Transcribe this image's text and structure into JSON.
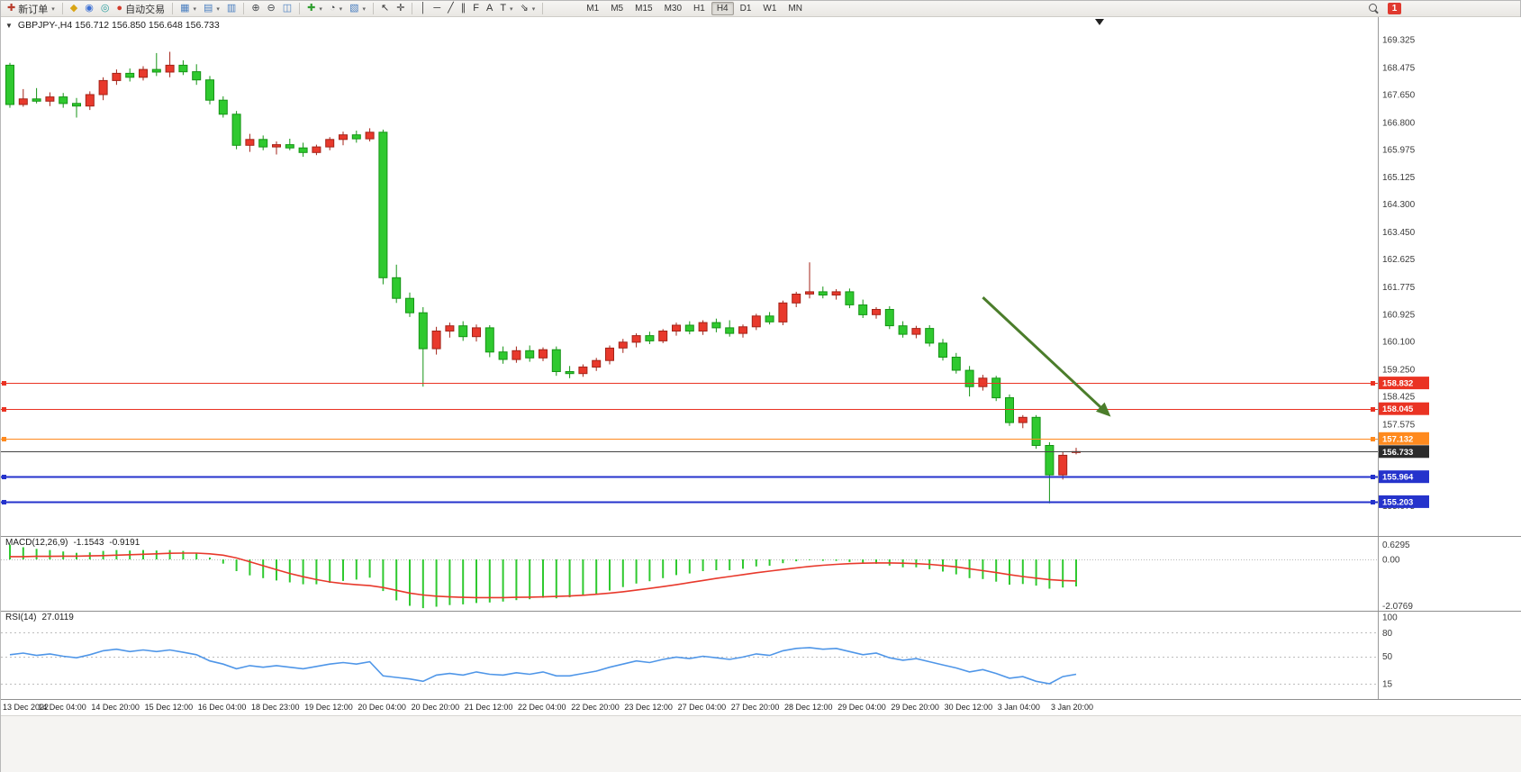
{
  "icons": {
    "collapse": "▼",
    "caret": "▾"
  },
  "toolbar": {
    "groups": [
      [
        {
          "name": "new-order-button",
          "glyph": "✚",
          "color": "#b83b2a",
          "label": "新订单",
          "caret": true
        }
      ],
      [
        {
          "name": "market-button",
          "glyph": "◆",
          "color": "#d9a514"
        },
        {
          "name": "community-button",
          "glyph": "◉",
          "color": "#3b6fd4"
        },
        {
          "name": "alerts-button",
          "glyph": "◎",
          "color": "#2a9e9e"
        },
        {
          "name": "autotrading-button",
          "glyph": "●",
          "color": "#d23b2b",
          "label": "自动交易"
        }
      ],
      [
        {
          "name": "new-chart-button",
          "glyph": "▦",
          "color": "#4a7fc0",
          "caret": true
        },
        {
          "name": "profiles-button",
          "glyph": "▤",
          "color": "#4a7fc0",
          "caret": true
        },
        {
          "name": "data-window-button",
          "glyph": "▥",
          "color": "#4a7fc0"
        }
      ],
      [
        {
          "name": "zoom-in-button",
          "glyph": "⊕",
          "color": "#44484c"
        },
        {
          "name": "zoom-out-button",
          "glyph": "⊖",
          "color": "#44484c"
        },
        {
          "name": "tile-windows-button",
          "glyph": "◫",
          "color": "#4a7fc0"
        }
      ],
      [
        {
          "name": "indicators-button",
          "glyph": "✚",
          "color": "#2f9e2f",
          "caret": true
        },
        {
          "name": "periods-button",
          "glyph": "◔",
          "color": "#44484c",
          "caret": true
        },
        {
          "name": "templates-button",
          "glyph": "▧",
          "color": "#4a7fc0",
          "caret": true
        }
      ],
      [
        {
          "name": "cursor-button",
          "glyph": "↖",
          "color": "#333333"
        },
        {
          "name": "crosshair-button",
          "glyph": "✛",
          "color": "#333333"
        }
      ],
      [
        {
          "name": "vertical-line-button",
          "glyph": "│",
          "color": "#333333"
        },
        {
          "name": "horizontal-line-button",
          "glyph": "─",
          "color": "#333333"
        },
        {
          "name": "trendline-button",
          "glyph": "╱",
          "color": "#333333"
        },
        {
          "name": "equidistant-channel-button",
          "glyph": "∥",
          "color": "#333333"
        },
        {
          "name": "fibonacci-button",
          "glyph": "F",
          "color": "#333333"
        },
        {
          "name": "text-button",
          "glyph": "A",
          "color": "#333333"
        },
        {
          "name": "text-label-button",
          "glyph": "T",
          "color": "#333333",
          "caret": true
        },
        {
          "name": "arrows-button",
          "glyph": "⇘",
          "color": "#333333",
          "caret": true
        }
      ]
    ],
    "timeframes": {
      "items": [
        "M1",
        "M5",
        "M15",
        "M30",
        "H1",
        "H4",
        "D1",
        "W1",
        "MN"
      ],
      "active": "H4"
    },
    "right": {
      "badge": "1"
    }
  },
  "chart_data": {
    "type": "candlestick",
    "symbol": "GBPJPY-",
    "timeframe": "H4",
    "title_line": "GBPJPY-,H4 156.712 156.850 156.648 156.733",
    "quote": {
      "open": "156.712",
      "high": "156.850",
      "low": "156.648",
      "close": "156.733"
    },
    "label_every": 4,
    "x_labels": [
      "13 Dec 2022",
      "14 Dec 04:00",
      "14 Dec 20:00",
      "15 Dec 12:00",
      "16 Dec 04:00",
      "18 Dec 23:00",
      "19 Dec 12:00",
      "20 Dec 04:00",
      "20 Dec 20:00",
      "21 Dec 12:00",
      "22 Dec 04:00",
      "22 Dec 20:00",
      "23 Dec 12:00",
      "27 Dec 04:00",
      "27 Dec 20:00",
      "28 Dec 12:00",
      "29 Dec 04:00",
      "29 Dec 20:00",
      "30 Dec 12:00",
      "3 Jan 04:00",
      "3 Jan 20:00"
    ],
    "price_axis": {
      "labels": [
        "169.325",
        "168.475",
        "167.650",
        "166.800",
        "165.975",
        "165.125",
        "164.300",
        "163.450",
        "162.625",
        "161.775",
        "160.925",
        "160.100",
        "159.250",
        "158.425",
        "157.575",
        "156.750",
        "155.900",
        "155.075"
      ],
      "range": [
        154.3,
        169.8
      ]
    },
    "colors": {
      "up": "#e8392c",
      "up_border": "#a32318",
      "down": "#2fc92f",
      "down_border": "#159415"
    },
    "candles": [
      [
        168.55,
        168.62,
        167.25,
        167.35
      ],
      [
        167.35,
        167.82,
        167.28,
        167.52
      ],
      [
        167.52,
        167.85,
        167.38,
        167.45
      ],
      [
        167.45,
        167.72,
        167.3,
        167.58
      ],
      [
        167.58,
        167.7,
        167.25,
        167.38
      ],
      [
        167.38,
        167.55,
        166.95,
        167.3
      ],
      [
        167.3,
        167.75,
        167.18,
        167.65
      ],
      [
        167.65,
        168.18,
        167.48,
        168.08
      ],
      [
        168.08,
        168.42,
        167.95,
        168.3
      ],
      [
        168.3,
        168.45,
        168.05,
        168.18
      ],
      [
        168.18,
        168.52,
        168.08,
        168.42
      ],
      [
        168.42,
        168.92,
        168.22,
        168.34
      ],
      [
        168.34,
        168.96,
        168.18,
        168.55
      ],
      [
        168.55,
        168.7,
        168.25,
        168.35
      ],
      [
        168.35,
        168.58,
        167.95,
        168.1
      ],
      [
        168.1,
        168.22,
        167.35,
        167.48
      ],
      [
        167.48,
        167.6,
        166.95,
        167.05
      ],
      [
        167.05,
        167.15,
        165.98,
        166.1
      ],
      [
        166.1,
        166.45,
        165.9,
        166.28
      ],
      [
        166.28,
        166.4,
        165.95,
        166.05
      ],
      [
        166.05,
        166.22,
        165.82,
        166.12
      ],
      [
        166.12,
        166.3,
        165.95,
        166.02
      ],
      [
        166.02,
        166.18,
        165.75,
        165.88
      ],
      [
        165.88,
        166.12,
        165.8,
        166.05
      ],
      [
        166.05,
        166.35,
        165.95,
        166.28
      ],
      [
        166.28,
        166.52,
        166.1,
        166.42
      ],
      [
        166.42,
        166.55,
        166.18,
        166.3
      ],
      [
        166.3,
        166.62,
        166.22,
        166.5
      ],
      [
        166.5,
        166.58,
        161.85,
        162.05
      ],
      [
        162.05,
        162.45,
        161.28,
        161.42
      ],
      [
        161.42,
        161.6,
        160.85,
        160.98
      ],
      [
        160.98,
        161.15,
        158.72,
        159.88
      ],
      [
        159.88,
        160.55,
        159.7,
        160.42
      ],
      [
        160.42,
        160.68,
        160.22,
        160.58
      ],
      [
        160.58,
        160.72,
        160.12,
        160.25
      ],
      [
        160.25,
        160.62,
        160.1,
        160.52
      ],
      [
        160.52,
        160.6,
        159.62,
        159.78
      ],
      [
        159.78,
        159.95,
        159.42,
        159.55
      ],
      [
        159.55,
        159.95,
        159.45,
        159.82
      ],
      [
        159.82,
        159.98,
        159.48,
        159.6
      ],
      [
        159.6,
        159.92,
        159.5,
        159.85
      ],
      [
        159.85,
        159.95,
        159.05,
        159.18
      ],
      [
        159.18,
        159.35,
        158.98,
        159.12
      ],
      [
        159.12,
        159.4,
        159.02,
        159.32
      ],
      [
        159.32,
        159.6,
        159.2,
        159.52
      ],
      [
        159.52,
        159.98,
        159.4,
        159.9
      ],
      [
        159.9,
        160.18,
        159.75,
        160.08
      ],
      [
        160.08,
        160.35,
        159.92,
        160.28
      ],
      [
        160.28,
        160.4,
        160.02,
        160.12
      ],
      [
        160.12,
        160.48,
        160.05,
        160.42
      ],
      [
        160.42,
        160.68,
        160.28,
        160.6
      ],
      [
        160.6,
        160.72,
        160.32,
        160.42
      ],
      [
        160.42,
        160.75,
        160.3,
        160.68
      ],
      [
        160.68,
        160.8,
        160.38,
        160.52
      ],
      [
        160.52,
        160.75,
        160.25,
        160.35
      ],
      [
        160.35,
        160.62,
        160.22,
        160.55
      ],
      [
        160.55,
        160.95,
        160.45,
        160.88
      ],
      [
        160.88,
        161.0,
        160.62,
        160.7
      ],
      [
        160.7,
        161.35,
        160.6,
        161.28
      ],
      [
        161.28,
        161.62,
        161.15,
        161.55
      ],
      [
        161.55,
        162.52,
        161.42,
        161.62
      ],
      [
        161.62,
        161.78,
        161.42,
        161.52
      ],
      [
        161.52,
        161.7,
        161.38,
        161.62
      ],
      [
        161.62,
        161.72,
        161.12,
        161.22
      ],
      [
        161.22,
        161.38,
        160.82,
        160.92
      ],
      [
        160.92,
        161.15,
        160.8,
        161.08
      ],
      [
        161.08,
        161.18,
        160.48,
        160.58
      ],
      [
        160.58,
        160.72,
        160.22,
        160.32
      ],
      [
        160.32,
        160.58,
        160.2,
        160.5
      ],
      [
        160.5,
        160.6,
        159.95,
        160.05
      ],
      [
        160.05,
        160.18,
        159.52,
        159.62
      ],
      [
        159.62,
        159.75,
        159.12,
        159.22
      ],
      [
        159.22,
        159.35,
        158.42,
        158.72
      ],
      [
        158.72,
        159.08,
        158.6,
        158.98
      ],
      [
        158.98,
        159.05,
        158.28,
        158.38
      ],
      [
        158.38,
        158.48,
        157.52,
        157.62
      ],
      [
        157.62,
        157.85,
        157.45,
        157.78
      ],
      [
        157.78,
        157.85,
        156.82,
        156.92
      ],
      [
        156.92,
        157.02,
        155.15,
        156.02
      ],
      [
        156.02,
        156.72,
        155.88,
        156.62
      ],
      [
        156.712,
        156.85,
        156.648,
        156.733
      ]
    ],
    "lines": [
      {
        "name": "resistance-line-158832",
        "price": 158.832,
        "color": "#ea3323",
        "width": 1,
        "tag": "158.832",
        "handles": true
      },
      {
        "name": "resistance-line-158045",
        "price": 158.045,
        "color": "#ea3323",
        "width": 1,
        "tag": "158.045",
        "handles": true
      },
      {
        "name": "pivot-line-157132",
        "price": 157.132,
        "color": "#ff8a1e",
        "width": 1,
        "tag": "157.132",
        "handles": true
      },
      {
        "name": "bid-price-line",
        "price": 156.733,
        "color": "#444444",
        "width": 1,
        "tag": "156.733",
        "tag_bg": "#2b2b2b",
        "handles": false
      },
      {
        "name": "support-line-155964",
        "price": 155.964,
        "color": "#2533cc",
        "width": 2,
        "tag": "155.964",
        "handles": true
      },
      {
        "name": "support-line-155203",
        "price": 155.203,
        "color": "#2533cc",
        "width": 2,
        "tag": "155.203",
        "handles": true
      }
    ],
    "arrow": {
      "from_bar": 73.0,
      "from_price": 161.45,
      "to_bar": 82.6,
      "to_price": 157.8,
      "color": "#4b7d2b"
    },
    "macd": {
      "label": "MACD(12,26,9)",
      "value_main": "-1.1543",
      "value_signal": "-0.9191",
      "hist_color": "#2fc92f",
      "signal_color": "#e8392c",
      "scale": [
        {
          "text": "0.6295",
          "value": 0.6295
        },
        {
          "text": "0.00",
          "value": 0
        },
        {
          "text": "-2.0769",
          "value": -2.0769
        }
      ],
      "hist": [
        0.63,
        0.52,
        0.45,
        0.4,
        0.34,
        0.28,
        0.3,
        0.36,
        0.4,
        0.38,
        0.4,
        0.38,
        0.4,
        0.36,
        0.26,
        0.08,
        -0.18,
        -0.5,
        -0.68,
        -0.8,
        -0.9,
        -0.98,
        -1.06,
        -1.06,
        -1.0,
        -0.92,
        -0.86,
        -0.78,
        -1.35,
        -1.75,
        -1.98,
        -2.08,
        -2.02,
        -1.95,
        -1.92,
        -1.86,
        -1.84,
        -1.8,
        -1.74,
        -1.7,
        -1.64,
        -1.66,
        -1.62,
        -1.55,
        -1.46,
        -1.33,
        -1.18,
        -1.03,
        -0.93,
        -0.8,
        -0.67,
        -0.6,
        -0.5,
        -0.46,
        -0.46,
        -0.4,
        -0.3,
        -0.27,
        -0.16,
        -0.08,
        -0.03,
        -0.06,
        -0.06,
        -0.11,
        -0.19,
        -0.19,
        -0.26,
        -0.34,
        -0.34,
        -0.42,
        -0.52,
        -0.64,
        -0.8,
        -0.84,
        -0.95,
        -1.08,
        -1.05,
        -1.12,
        -1.25,
        -1.2,
        -1.1543
      ],
      "signal": [
        0.12,
        0.12,
        0.13,
        0.13,
        0.14,
        0.14,
        0.15,
        0.16,
        0.18,
        0.2,
        0.22,
        0.24,
        0.26,
        0.27,
        0.27,
        0.24,
        0.18,
        0.06,
        -0.1,
        -0.27,
        -0.44,
        -0.6,
        -0.74,
        -0.86,
        -0.96,
        -1.03,
        -1.08,
        -1.12,
        -1.2,
        -1.32,
        -1.44,
        -1.52,
        -1.57,
        -1.6,
        -1.62,
        -1.63,
        -1.63,
        -1.63,
        -1.62,
        -1.61,
        -1.6,
        -1.58,
        -1.56,
        -1.53,
        -1.49,
        -1.44,
        -1.38,
        -1.31,
        -1.24,
        -1.16,
        -1.08,
        -0.99,
        -0.9,
        -0.81,
        -0.73,
        -0.65,
        -0.57,
        -0.5,
        -0.43,
        -0.36,
        -0.3,
        -0.25,
        -0.21,
        -0.18,
        -0.16,
        -0.15,
        -0.15,
        -0.16,
        -0.18,
        -0.21,
        -0.26,
        -0.32,
        -0.4,
        -0.48,
        -0.56,
        -0.65,
        -0.73,
        -0.8,
        -0.86,
        -0.9,
        -0.9191
      ]
    },
    "rsi": {
      "label": "RSI(14)",
      "value": "27.0119",
      "color": "#4f96e8",
      "levels": [
        {
          "text": "100",
          "value": 100,
          "line": false
        },
        {
          "text": "80",
          "value": 80,
          "line": true
        },
        {
          "text": "50",
          "value": 50,
          "line": true
        },
        {
          "text": "15",
          "value": 15,
          "line": true
        }
      ],
      "values": [
        52,
        54,
        51,
        53,
        50,
        48,
        52,
        57,
        59,
        56,
        58,
        56,
        58,
        55,
        52,
        44,
        40,
        34,
        38,
        36,
        38,
        36,
        34,
        37,
        40,
        42,
        40,
        43,
        25,
        23,
        21,
        18,
        26,
        28,
        26,
        30,
        27,
        26,
        29,
        27,
        30,
        25,
        25,
        28,
        31,
        36,
        40,
        44,
        42,
        46,
        49,
        47,
        50,
        48,
        46,
        49,
        53,
        51,
        57,
        60,
        61,
        59,
        60,
        56,
        52,
        54,
        48,
        45,
        47,
        43,
        39,
        35,
        30,
        33,
        28,
        22,
        24,
        18,
        15,
        24,
        27.0119
      ]
    }
  }
}
